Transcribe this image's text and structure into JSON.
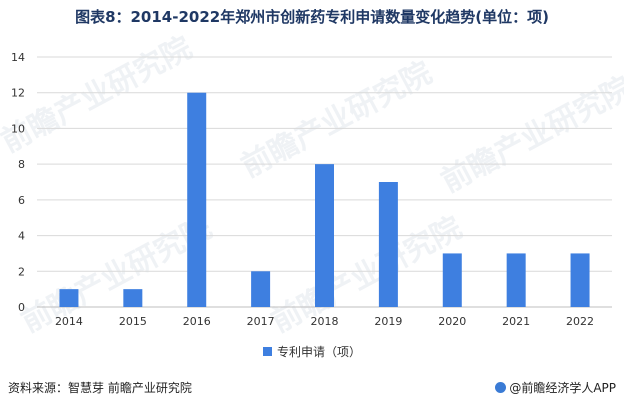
{
  "title": "图表8：2014-2022年郑州市创新药专利申请数量变化趋势(单位：项)",
  "chart_data": {
    "type": "bar",
    "categories": [
      "2014",
      "2015",
      "2016",
      "2017",
      "2018",
      "2019",
      "2020",
      "2021",
      "2022"
    ],
    "series": [
      {
        "name": "专利申请（项）",
        "values": [
          1,
          1,
          12,
          2,
          8,
          7,
          3,
          3,
          3
        ],
        "color": "#3e7fe0"
      }
    ],
    "ylim": [
      0,
      14
    ],
    "yticks": [
      0,
      2,
      4,
      6,
      8,
      10,
      12,
      14
    ],
    "grid": true,
    "legend_position": "bottom"
  },
  "watermark": "前瞻产业研究院",
  "footer": {
    "source": "资料来源：智慧芽 前瞻产业研究院",
    "brand": "@前瞻经济学人APP"
  }
}
